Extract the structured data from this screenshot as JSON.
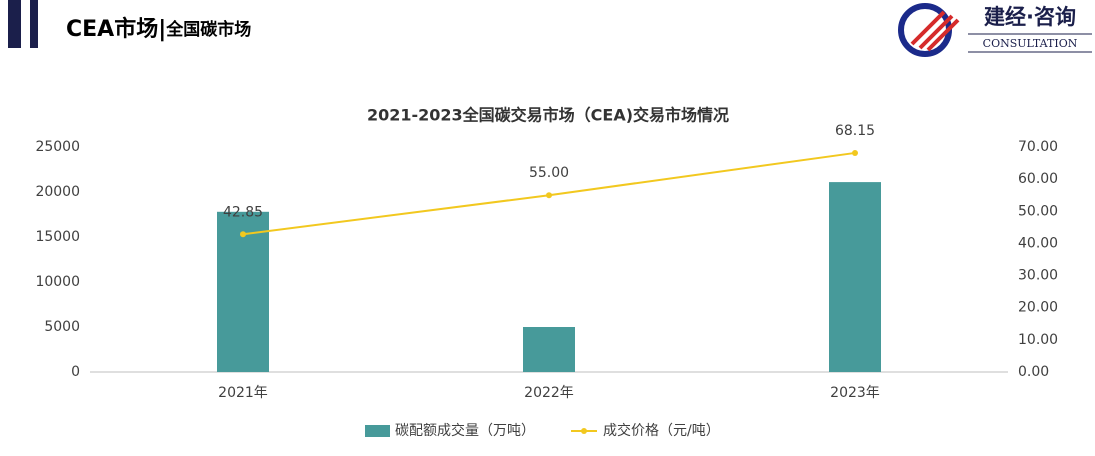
{
  "header": {
    "title": "CEA市场|",
    "subtitle": "全国碳市场",
    "logo_name": "建经·咨询",
    "logo_sub": "CONSULTATION"
  },
  "chart_data": {
    "type": "bar",
    "title": "2021-2023全国碳交易市场（CEA)交易市场情况",
    "categories": [
      "2021年",
      "2022年",
      "2023年"
    ],
    "series": [
      {
        "name": "碳配额成交量（万吨）",
        "type": "bar",
        "color": "#479a9a",
        "values": [
          17800,
          5000,
          21100
        ]
      },
      {
        "name": "成交价格（元/吨）",
        "type": "line",
        "axis": "y2",
        "color": "#f2c81f",
        "values": [
          42.85,
          55,
          68.15
        ],
        "value_labels": [
          "42.85",
          "55.00",
          "68.15"
        ]
      }
    ],
    "ylim": [
      0,
      25000
    ],
    "yticks": [
      0,
      5000,
      10000,
      15000,
      20000,
      25000
    ],
    "y2lim": [
      0,
      70
    ],
    "y2ticks": [
      {
        "value": 0,
        "label": "0.00"
      },
      {
        "value": 10,
        "label": "10.00"
      },
      {
        "value": 20,
        "label": "20.00"
      },
      {
        "value": 30,
        "label": "30.00"
      },
      {
        "value": 40,
        "label": "40.00"
      },
      {
        "value": 50,
        "label": "50.00"
      },
      {
        "value": 60,
        "label": "60.00"
      },
      {
        "value": 70,
        "label": "70.00"
      }
    ],
    "grid": false,
    "legend": "bottom"
  }
}
